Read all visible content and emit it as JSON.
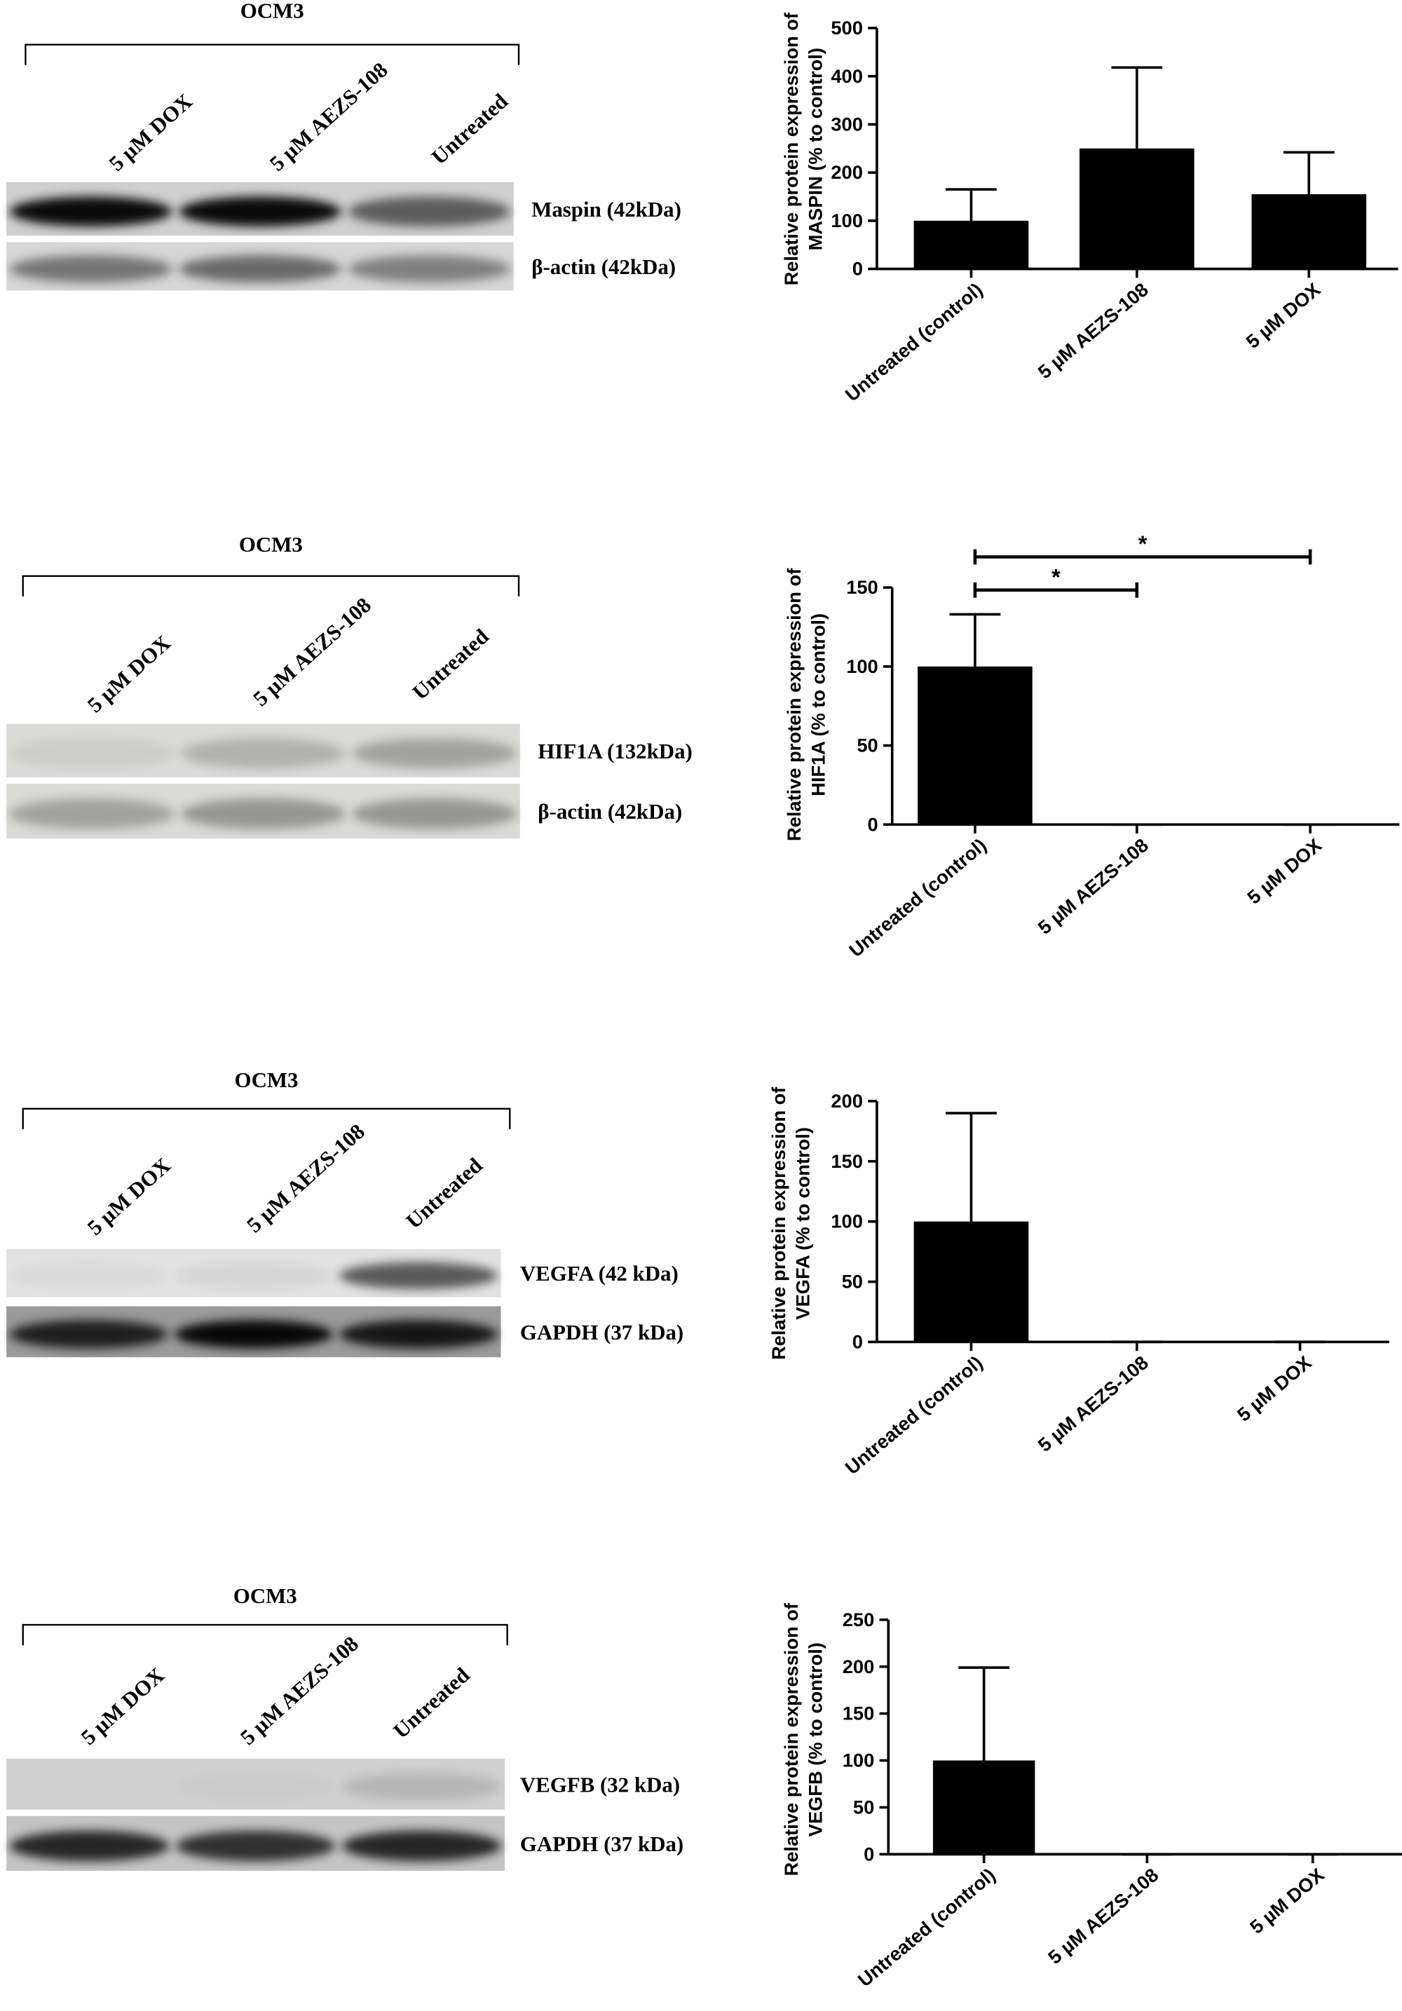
{
  "chart_data": [
    {
      "type": "bar",
      "y_label": [
        "Relative protein expression of",
        "MASPIN (% to control)"
      ],
      "categories": [
        "Untreated (control)",
        "5 µM AEZS-108",
        "5  µM DOX"
      ],
      "values": [
        100,
        250,
        155
      ],
      "errors": [
        65,
        168,
        87
      ],
      "color": "#000000",
      "ylim": [
        0,
        500
      ],
      "yticks": [
        0,
        100,
        200,
        300,
        400,
        500
      ]
    },
    {
      "type": "bar",
      "y_label": [
        "Relative protein expression of",
        "HIF1A (% to control)"
      ],
      "categories": [
        "Untreated (control)",
        "5 µM AEZS-108",
        "5  µM DOX"
      ],
      "values": [
        100,
        0,
        0
      ],
      "errors": [
        33,
        0,
        0
      ],
      "color": "#000000",
      "ylim": [
        0,
        150
      ],
      "yticks": [
        0,
        50,
        100,
        150
      ],
      "annotations": [
        {
          "text": "*",
          "from": 0,
          "to": 1
        },
        {
          "text": "*",
          "from": 0,
          "to": 2
        }
      ]
    },
    {
      "type": "bar",
      "y_label": [
        "Relative protein expression of",
        "VEGFA (% to control)"
      ],
      "categories": [
        "Untreated (control)",
        "5 µM AEZS-108",
        "5  µM DOX"
      ],
      "values": [
        100,
        0,
        0
      ],
      "errors": [
        90,
        0,
        0
      ],
      "color": "#000000",
      "ylim": [
        0,
        200
      ],
      "yticks": [
        0,
        50,
        100,
        150,
        200
      ]
    },
    {
      "type": "bar",
      "y_label": [
        "Relative protein expression of",
        "VEGFB (% to control)"
      ],
      "categories": [
        "Untreated (control)",
        "5 µM AEZS-108",
        "5  µM DOX"
      ],
      "values": [
        100,
        0,
        0
      ],
      "errors": [
        99,
        0,
        0
      ],
      "color": "#000000",
      "ylim": [
        0,
        250
      ],
      "yticks": [
        0,
        50,
        100,
        150,
        200,
        250
      ]
    }
  ],
  "blots": [
    {
      "title": "OCM3",
      "lanes": [
        "5 µM DOX",
        "5 µM AEZS-108",
        "Untreated"
      ],
      "bands": [
        "Maspin (42kDa)",
        "β-actin (42kDa)"
      ]
    },
    {
      "title": "OCM3",
      "lanes": [
        "5 µM DOX",
        "5 µM AEZS-108",
        "Untreated"
      ],
      "bands": [
        "HIF1A (132kDa)",
        "β-actin (42kDa)"
      ]
    },
    {
      "title": "OCM3",
      "lanes": [
        "5 µM DOX",
        "5 µM AEZS-108",
        "Untreated"
      ],
      "bands": [
        "VEGFA (42 kDa)",
        "GAPDH (37 kDa)"
      ]
    },
    {
      "title": "OCM3",
      "lanes": [
        "5 µM DOX",
        "5 µM AEZS-108",
        "Untreated"
      ],
      "bands": [
        "VEGFB (32 kDa)",
        "GAPDH (37 kDa)"
      ]
    }
  ]
}
